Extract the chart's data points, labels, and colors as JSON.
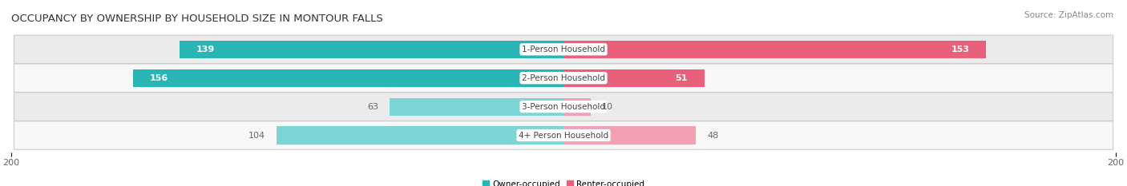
{
  "title": "OCCUPANCY BY OWNERSHIP BY HOUSEHOLD SIZE IN MONTOUR FALLS",
  "source": "Source: ZipAtlas.com",
  "categories": [
    "1-Person Household",
    "2-Person Household",
    "3-Person Household",
    "4+ Person Household"
  ],
  "owner_values": [
    139,
    156,
    63,
    104
  ],
  "renter_values": [
    153,
    51,
    10,
    48
  ],
  "owner_color_dark": "#2ab5b5",
  "owner_color_light": "#7dd4d4",
  "renter_color_dark": "#e8607a",
  "renter_color_light": "#f4a0b4",
  "row_bg_color_dark": "#d8d8d8",
  "row_bg_color_light": "#f5f5f5",
  "row_bg_colors": [
    "#ebebeb",
    "#f8f8f8",
    "#ebebeb",
    "#f8f8f8"
  ],
  "axis_max": 200,
  "legend_owner": "Owner-occupied",
  "legend_renter": "Renter-occupied",
  "title_fontsize": 9.5,
  "source_fontsize": 7.5,
  "value_fontsize": 8,
  "cat_fontsize": 7.5,
  "axis_label_fontsize": 8,
  "white_label_rows": [
    0,
    1
  ],
  "dark_label_rows": [
    2,
    3
  ]
}
